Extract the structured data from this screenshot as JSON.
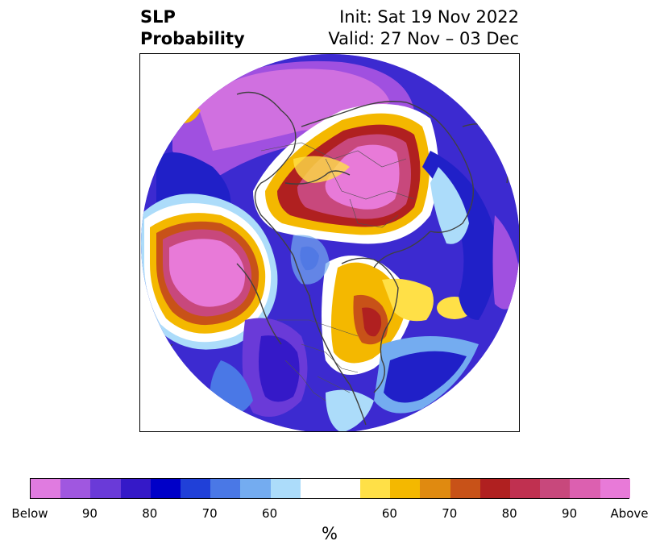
{
  "title": {
    "left_line1": "SLP",
    "left_line2": "Probability",
    "right_line1": "Init: Sat 19 Nov 2022",
    "right_line2": "Valid: 27 Nov – 03 Dec"
  },
  "colorbar": {
    "unit": "%",
    "below_colors": [
      "#e07be0",
      "#a057e0",
      "#6a3ad8",
      "#3519c8",
      "#0000c8",
      "#2040d8",
      "#4a78e6",
      "#74acf0",
      "#acdcfa"
    ],
    "neutral_color": "#ffffff",
    "above_colors": [
      "#ffe047",
      "#f4b800",
      "#e08a10",
      "#c85218",
      "#b02020",
      "#c03050",
      "#c8487c",
      "#dc60b0",
      "#e87ad8"
    ],
    "tick_labels": [
      "Below",
      "90",
      "80",
      "70",
      "60",
      "60",
      "70",
      "80",
      "90",
      "Above"
    ]
  }
}
